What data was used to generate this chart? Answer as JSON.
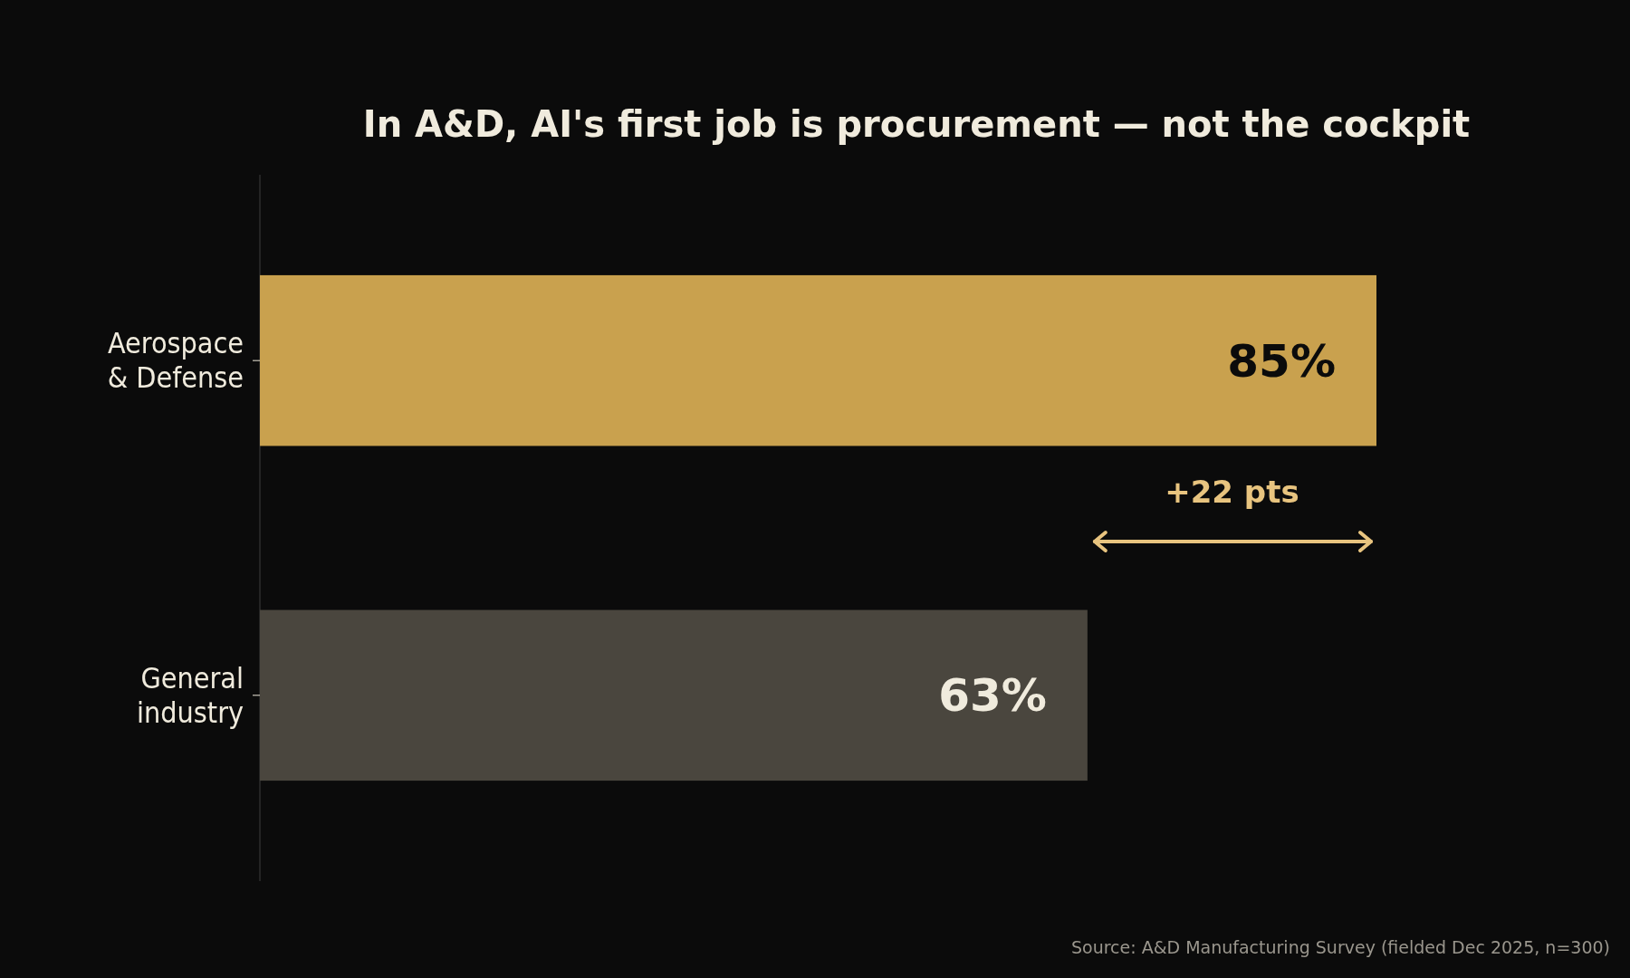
{
  "chart_data": {
    "type": "bar",
    "orientation": "horizontal",
    "title": "In A&D, AI's first job is procurement — not the cockpit",
    "categories": [
      "Aerospace\n& Defense",
      "General\nindustry"
    ],
    "values": [
      85,
      63
    ],
    "colors": [
      "#c9a14e",
      "#4a463e"
    ],
    "value_labels": [
      "85%",
      "63%"
    ],
    "tick_labels": "y",
    "annotations": [
      "+22 pts",
      "Source: A&D Manufacturing Survey (fielded Dec 2025, n=300)"
    ]
  }
}
